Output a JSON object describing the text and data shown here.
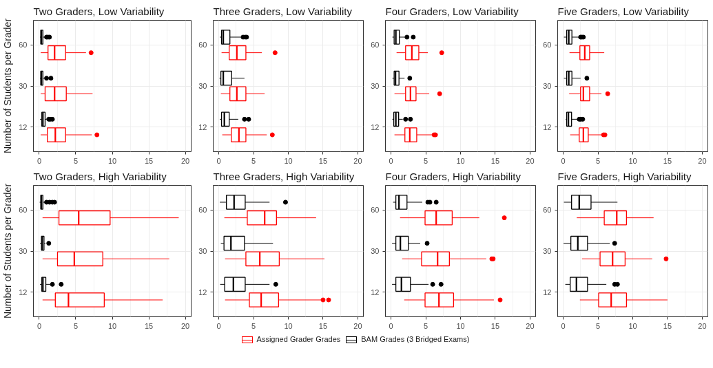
{
  "chart_data": [
    {
      "type": "box",
      "title": "Two Graders, Low Variability",
      "ylabel": "Number of Students per Grader",
      "orientation": "horizontal",
      "categories": [
        "60",
        "30",
        "12"
      ],
      "xlim": [
        -0.8,
        20.8
      ],
      "xticks": [
        0,
        5,
        10,
        15,
        20
      ],
      "grid": true,
      "legend": "bottom",
      "marker": "circle",
      "series": [
        {
          "name": "Assigned Grader Grades",
          "color": "#ff0000",
          "boxes": [
            {
              "low": 0.2,
              "q1": 1.2,
              "median": 2.1,
              "q3": 3.6,
              "high": 6.4,
              "outliers": [
                7.1
              ]
            },
            {
              "low": 0.2,
              "q1": 0.8,
              "median": 2.1,
              "q3": 3.7,
              "high": 7.3
            },
            {
              "low": 0.2,
              "q1": 1.1,
              "median": 2.2,
              "q3": 3.6,
              "high": 7.2,
              "outliers": [
                7.9
              ]
            }
          ]
        },
        {
          "name": "BAM Grades (3 Bridged Exams)",
          "color": "#000000",
          "boxes": [
            {
              "low": 0.1,
              "q1": 0.2,
              "median": 0.3,
              "q3": 0.5,
              "high": 0.7,
              "outliers": [
                1.0,
                1.2,
                1.4
              ]
            },
            {
              "low": 0.1,
              "q1": 0.2,
              "median": 0.3,
              "q3": 0.5,
              "high": 0.7,
              "outliers": [
                1.0,
                1.6
              ]
            },
            {
              "low": 0.1,
              "q1": 0.35,
              "median": 0.5,
              "q3": 0.8,
              "high": 1.0,
              "outliers": [
                1.3,
                1.5,
                1.8
              ]
            }
          ]
        }
      ]
    },
    {
      "type": "box",
      "title": "Three Graders, Low Variability",
      "orientation": "horizontal",
      "categories": [
        "60",
        "30",
        "12"
      ],
      "xlim": [
        -0.8,
        20.8
      ],
      "xticks": [
        0,
        5,
        10,
        15,
        20
      ],
      "grid": true,
      "legend": "bottom",
      "marker": "circle",
      "series": [
        {
          "name": "Assigned Grader Grades",
          "color": "#ff0000",
          "boxes": [
            {
              "low": 0.4,
              "q1": 1.5,
              "median": 2.6,
              "q3": 3.9,
              "high": 6.2,
              "outliers": [
                8.1
              ]
            },
            {
              "low": 0.3,
              "q1": 1.6,
              "median": 2.6,
              "q3": 3.9,
              "high": 6.6
            },
            {
              "low": 0.5,
              "q1": 1.8,
              "median": 2.9,
              "q3": 3.9,
              "high": 6.9,
              "outliers": [
                7.7
              ]
            }
          ]
        },
        {
          "name": "BAM Grades (3 Bridged Exams)",
          "color": "#000000",
          "boxes": [
            {
              "low": 0.15,
              "q1": 0.4,
              "median": 0.65,
              "q3": 1.6,
              "high": 3.2,
              "outliers": [
                3.5,
                3.8,
                4.0
              ]
            },
            {
              "low": 0.1,
              "q1": 0.3,
              "median": 0.65,
              "q3": 1.85,
              "high": 3.7
            },
            {
              "low": 0.15,
              "q1": 0.4,
              "median": 0.8,
              "q3": 1.5,
              "high": 2.8,
              "outliers": [
                3.7,
                4.3
              ]
            }
          ]
        }
      ]
    },
    {
      "type": "box",
      "title": "Four Graders, Low Variability",
      "orientation": "horizontal",
      "categories": [
        "60",
        "30",
        "12"
      ],
      "xlim": [
        -0.8,
        20.8
      ],
      "xticks": [
        0,
        5,
        10,
        15,
        20
      ],
      "grid": true,
      "legend": "bottom",
      "marker": "circle",
      "series": [
        {
          "name": "Assigned Grader Grades",
          "color": "#ff0000",
          "boxes": [
            {
              "low": 0.8,
              "q1": 2.1,
              "median": 3.0,
              "q3": 4.0,
              "high": 5.3,
              "outliers": [
                7.3
              ]
            },
            {
              "low": 0.5,
              "q1": 2.1,
              "median": 2.8,
              "q3": 3.6,
              "high": 5.5,
              "outliers": [
                7.0
              ]
            },
            {
              "low": 0.5,
              "q1": 2.0,
              "median": 2.7,
              "q3": 3.7,
              "high": 6.0,
              "outliers": [
                6.2,
                6.4
              ]
            }
          ]
        },
        {
          "name": "BAM Grades (3 Bridged Exams)",
          "color": "#000000",
          "boxes": [
            {
              "low": 0.2,
              "q1": 0.45,
              "median": 0.7,
              "q3": 1.2,
              "high": 2.0,
              "outliers": [
                2.3,
                3.2
              ]
            },
            {
              "low": 0.2,
              "q1": 0.45,
              "median": 0.65,
              "q3": 1.15,
              "high": 1.95,
              "outliers": [
                2.7
              ]
            },
            {
              "low": 0.2,
              "q1": 0.4,
              "median": 0.7,
              "q3": 1.1,
              "high": 1.7,
              "outliers": [
                2.1,
                2.8
              ]
            }
          ]
        }
      ]
    },
    {
      "type": "box",
      "title": "Five Graders, Low Variability",
      "orientation": "horizontal",
      "categories": [
        "60",
        "30",
        "12"
      ],
      "xlim": [
        -0.8,
        20.8
      ],
      "xticks": [
        0,
        5,
        10,
        15,
        20
      ],
      "grid": true,
      "legend": "bottom",
      "marker": "circle",
      "series": [
        {
          "name": "Assigned Grader Grades",
          "color": "#ff0000",
          "boxes": [
            {
              "low": 0.9,
              "q1": 2.4,
              "median": 3.1,
              "q3": 3.8,
              "high": 5.9
            },
            {
              "low": 0.85,
              "q1": 2.5,
              "median": 2.9,
              "q3": 3.8,
              "high": 5.5,
              "outliers": [
                6.4
              ]
            },
            {
              "low": 1.0,
              "q1": 2.3,
              "median": 2.9,
              "q3": 3.6,
              "high": 5.7,
              "outliers": [
                5.8,
                6.0
              ]
            }
          ]
        },
        {
          "name": "BAM Grades (3 Bridged Exams)",
          "color": "#000000",
          "boxes": [
            {
              "low": 0.1,
              "q1": 0.5,
              "median": 0.8,
              "q3": 1.25,
              "high": 2.3,
              "outliers": [
                2.5,
                2.7,
                2.9
              ]
            },
            {
              "low": 0.1,
              "q1": 0.5,
              "median": 0.8,
              "q3": 1.25,
              "high": 2.5,
              "outliers": [
                3.4
              ]
            },
            {
              "low": 0.35,
              "q1": 0.5,
              "median": 0.75,
              "q3": 1.2,
              "high": 2.05,
              "outliers": [
                2.3,
                2.5,
                2.8
              ]
            }
          ]
        }
      ]
    },
    {
      "type": "box",
      "title": "Two Graders, High Variability",
      "ylabel": "Number of Students per Grader",
      "orientation": "horizontal",
      "categories": [
        "60",
        "30",
        "12"
      ],
      "xlim": [
        -0.8,
        20.8
      ],
      "xticks": [
        0,
        5,
        10,
        15,
        20
      ],
      "grid": true,
      "legend": "bottom",
      "marker": "circle",
      "series": [
        {
          "name": "Assigned Grader Grades",
          "color": "#ff0000",
          "boxes": [
            {
              "low": 0.45,
              "q1": 2.7,
              "median": 5.4,
              "q3": 9.7,
              "high": 19.1
            },
            {
              "low": 0.45,
              "q1": 2.5,
              "median": 4.8,
              "q3": 8.7,
              "high": 17.8
            },
            {
              "low": 0.45,
              "q1": 2.2,
              "median": 4.0,
              "q3": 8.9,
              "high": 16.9
            }
          ]
        },
        {
          "name": "BAM Grades (3 Bridged Exams)",
          "color": "#000000",
          "boxes": [
            {
              "low": 0.05,
              "q1": 0.2,
              "median": 0.3,
              "q3": 0.5,
              "high": 0.8,
              "outliers": [
                1.0,
                1.4,
                1.8,
                2.1
              ]
            },
            {
              "low": 0.1,
              "q1": 0.3,
              "median": 0.4,
              "q3": 0.65,
              "high": 0.85,
              "outliers": [
                1.3
              ]
            },
            {
              "low": 0.1,
              "q1": 0.35,
              "median": 0.5,
              "q3": 0.9,
              "high": 1.5,
              "outliers": [
                1.8,
                3.0
              ]
            }
          ]
        }
      ]
    },
    {
      "type": "box",
      "title": "Three Graders, High Variability",
      "orientation": "horizontal",
      "categories": [
        "60",
        "30",
        "12"
      ],
      "xlim": [
        -0.8,
        20.8
      ],
      "xticks": [
        0,
        5,
        10,
        15,
        20
      ],
      "grid": true,
      "legend": "bottom",
      "marker": "circle",
      "series": [
        {
          "name": "Assigned Grader Grades",
          "color": "#ff0000",
          "boxes": [
            {
              "low": 0.8,
              "q1": 4.1,
              "median": 6.6,
              "q3": 8.3,
              "high": 14.0
            },
            {
              "low": 0.9,
              "q1": 3.9,
              "median": 5.9,
              "q3": 8.7,
              "high": 15.2
            },
            {
              "low": 0.9,
              "q1": 4.4,
              "median": 6.1,
              "q3": 8.6,
              "high": 14.8,
              "outliers": [
                15.0,
                15.8
              ]
            }
          ]
        },
        {
          "name": "BAM Grades (3 Bridged Exams)",
          "color": "#000000",
          "boxes": [
            {
              "low": 0.15,
              "q1": 1.1,
              "median": 2.2,
              "q3": 3.8,
              "high": 7.3,
              "outliers": [
                9.6
              ]
            },
            {
              "low": 0.3,
              "q1": 0.75,
              "median": 1.75,
              "q3": 3.7,
              "high": 7.8
            },
            {
              "low": 0.2,
              "q1": 0.85,
              "median": 2.1,
              "q3": 3.8,
              "high": 7.3,
              "outliers": [
                8.2
              ]
            }
          ]
        }
      ]
    },
    {
      "type": "box",
      "title": "Four Graders, High Variability",
      "orientation": "horizontal",
      "categories": [
        "60",
        "30",
        "12"
      ],
      "xlim": [
        -0.8,
        20.8
      ],
      "xticks": [
        0,
        5,
        10,
        15,
        20
      ],
      "grid": true,
      "legend": "bottom",
      "marker": "circle",
      "series": [
        {
          "name": "Assigned Grader Grades",
          "color": "#ff0000",
          "boxes": [
            {
              "low": 1.3,
              "q1": 4.9,
              "median": 6.5,
              "q3": 8.8,
              "high": 12.7,
              "outliers": [
                16.3
              ]
            },
            {
              "low": 1.6,
              "q1": 4.4,
              "median": 6.7,
              "q3": 8.4,
              "high": 13.7,
              "outliers": [
                14.5,
                14.7
              ]
            },
            {
              "low": 1.9,
              "q1": 4.9,
              "median": 6.9,
              "q3": 9.0,
              "high": 14.8,
              "outliers": [
                15.7
              ]
            }
          ]
        },
        {
          "name": "BAM Grades (3 Bridged Exams)",
          "color": "#000000",
          "boxes": [
            {
              "low": 0.3,
              "q1": 0.7,
              "median": 1.15,
              "q3": 2.3,
              "high": 4.5,
              "outliers": [
                5.3,
                5.6,
                6.5
              ]
            },
            {
              "low": 0.15,
              "q1": 0.7,
              "median": 1.35,
              "q3": 2.5,
              "high": 4.2,
              "outliers": [
                5.2
              ]
            },
            {
              "low": 0.15,
              "q1": 0.7,
              "median": 1.5,
              "q3": 2.8,
              "high": 5.4,
              "outliers": [
                6.0,
                7.2
              ]
            }
          ]
        }
      ]
    },
    {
      "type": "box",
      "title": "Five Graders, High Variability",
      "orientation": "horizontal",
      "categories": [
        "60",
        "30",
        "12"
      ],
      "xlim": [
        -0.8,
        20.8
      ],
      "xticks": [
        0,
        5,
        10,
        15,
        20
      ],
      "grid": true,
      "legend": "bottom",
      "marker": "circle",
      "series": [
        {
          "name": "Assigned Grader Grades",
          "color": "#ff0000",
          "boxes": [
            {
              "low": 1.95,
              "q1": 5.9,
              "median": 7.7,
              "q3": 9.1,
              "high": 13.0
            },
            {
              "low": 2.7,
              "q1": 5.3,
              "median": 7.1,
              "q3": 8.9,
              "high": 12.8,
              "outliers": [
                14.8
              ]
            },
            {
              "low": 2.4,
              "q1": 5.1,
              "median": 6.9,
              "q3": 9.1,
              "high": 15.0
            }
          ]
        },
        {
          "name": "BAM Grades (3 Bridged Exams)",
          "color": "#000000",
          "boxes": [
            {
              "low": 0.1,
              "q1": 1.2,
              "median": 2.3,
              "q3": 4.0,
              "high": 7.8
            },
            {
              "low": 0.05,
              "q1": 1.1,
              "median": 2.1,
              "q3": 3.5,
              "high": 6.7,
              "outliers": [
                7.4
              ]
            },
            {
              "low": 0.3,
              "q1": 1.0,
              "median": 1.9,
              "q3": 3.5,
              "high": 6.2,
              "outliers": [
                7.4,
                7.8
              ]
            }
          ]
        }
      ]
    }
  ]
}
